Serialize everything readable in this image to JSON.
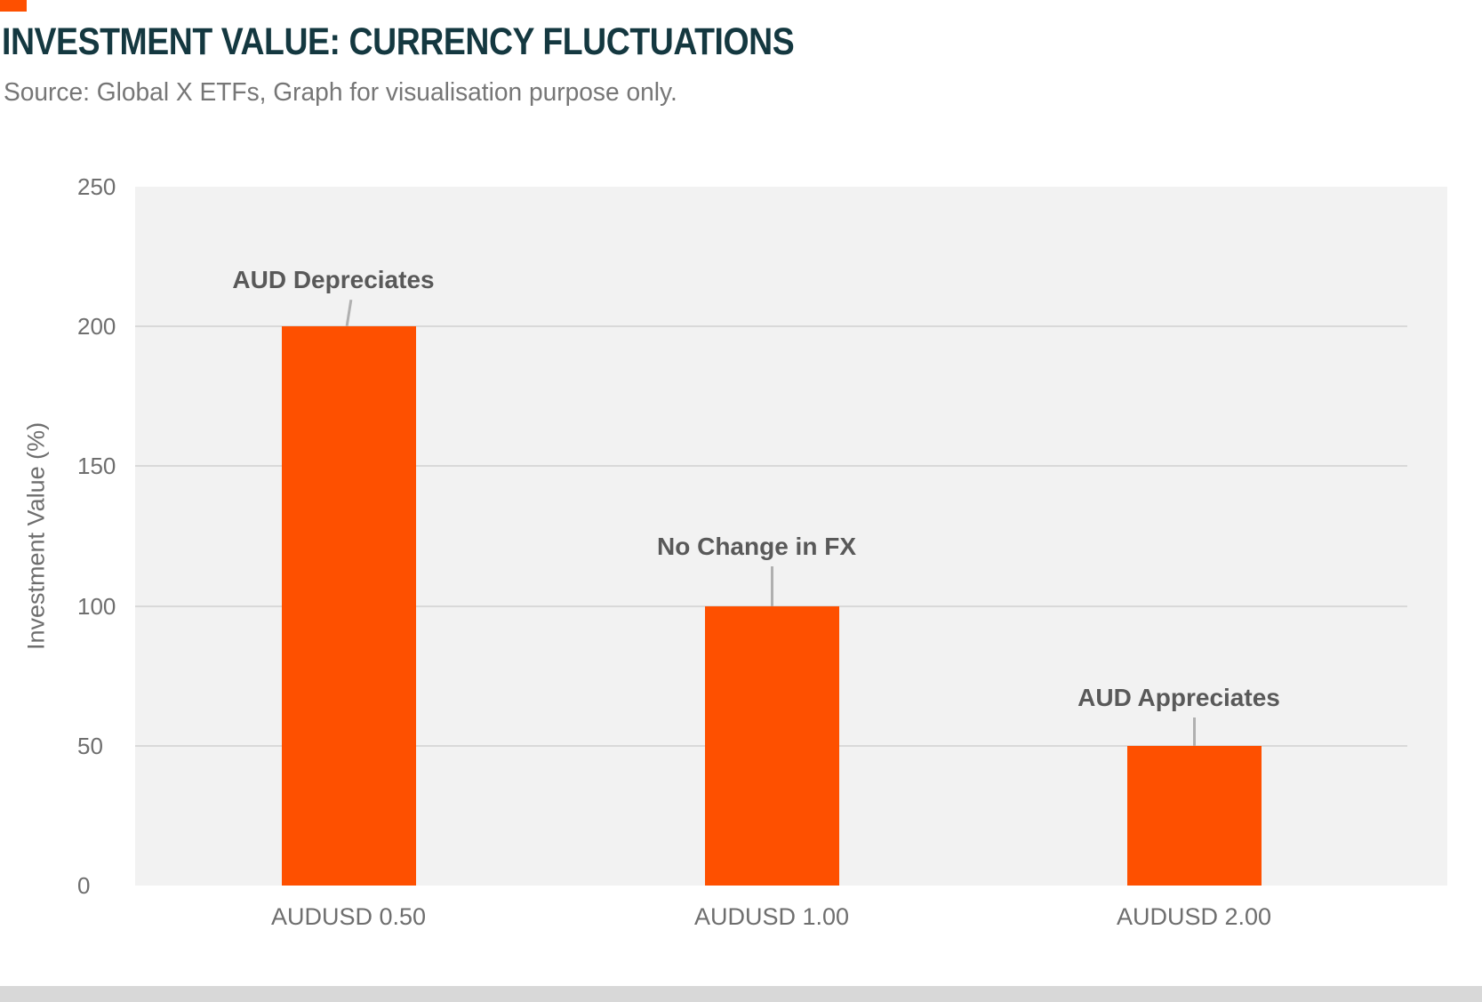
{
  "header": {
    "title": "INVESTMENT VALUE: CURRENCY FLUCTUATIONS",
    "source": "Source: Global X ETFs, Graph for visualisation purpose only."
  },
  "colors": {
    "accent_orange": "#FE5000",
    "title_text": "#143840",
    "bottom_strip": "#D8D8D8"
  },
  "chart_data": {
    "type": "bar",
    "title": "INVESTMENT VALUE: CURRENCY FLUCTUATIONS",
    "categories": [
      "AUDUSD 0.50",
      "AUDUSD 1.00",
      "AUDUSD 2.00"
    ],
    "values": [
      200,
      100,
      50
    ],
    "annotations": [
      "AUD Depreciates",
      "No Change in FX",
      "AUD Appreciates"
    ],
    "bar_color": "#FE5000",
    "xlabel": "",
    "ylabel": "Investment Value (%)",
    "ylim": [
      0,
      250
    ],
    "yticks": [
      0,
      50,
      100,
      150,
      200,
      250
    ],
    "grid": true,
    "legend": false,
    "plot_background": "#F2F2F2"
  }
}
